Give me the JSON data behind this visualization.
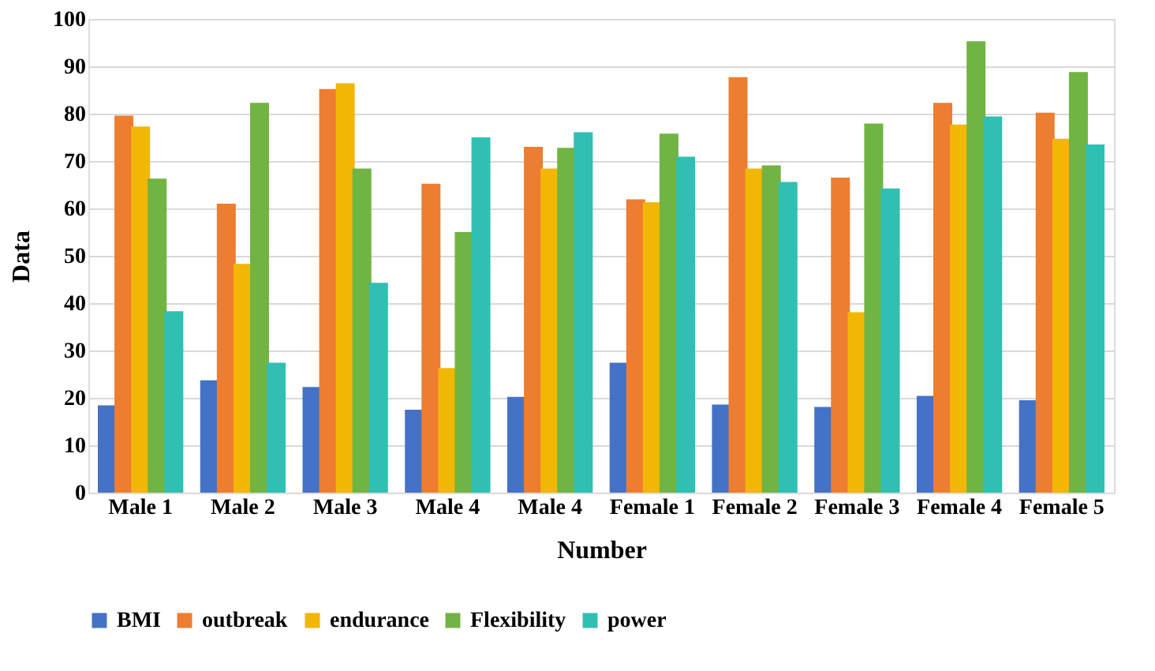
{
  "chart_data": {
    "type": "bar",
    "xlabel": "Number",
    "ylabel": "Data",
    "categories": [
      "Male 1",
      "Male 2",
      "Male 3",
      "Male 4",
      "Male 4",
      "Female 1",
      "Female 2",
      "Female 3",
      "Female 4",
      "Female 5"
    ],
    "series": [
      {
        "name": "BMI",
        "color": "#4472c4",
        "values": [
          18.4,
          23.7,
          22.3,
          17.5,
          20.2,
          27.4,
          18.6,
          18.1,
          20.4,
          19.5
        ]
      },
      {
        "name": "outbreak",
        "color": "#ed7d31",
        "values": [
          79.6,
          61,
          85.2,
          65.2,
          73,
          61.9,
          87.7,
          66.5,
          82.3,
          80.2
        ]
      },
      {
        "name": "endurance",
        "color": "#f2b705",
        "values": [
          77.3,
          48.3,
          86.4,
          26.3,
          68.4,
          61.3,
          68.4,
          38.1,
          77.7,
          74.7
        ]
      },
      {
        "name": "Flexibility",
        "color": "#70b443",
        "values": [
          66.3,
          82.3,
          68.4,
          55,
          72.8,
          75.8,
          69.1,
          77.9,
          95.3,
          88.8
        ]
      },
      {
        "name": "power",
        "color": "#30bfb3",
        "values": [
          38.3,
          27.4,
          44.3,
          75,
          76.1,
          70.9,
          65.6,
          64.2,
          79.4,
          73.5
        ]
      }
    ],
    "ylim": [
      0,
      100
    ],
    "yticks": [
      0,
      10,
      20,
      30,
      40,
      50,
      60,
      70,
      80,
      90,
      100
    ],
    "grid": "y",
    "legend": "bottom"
  }
}
